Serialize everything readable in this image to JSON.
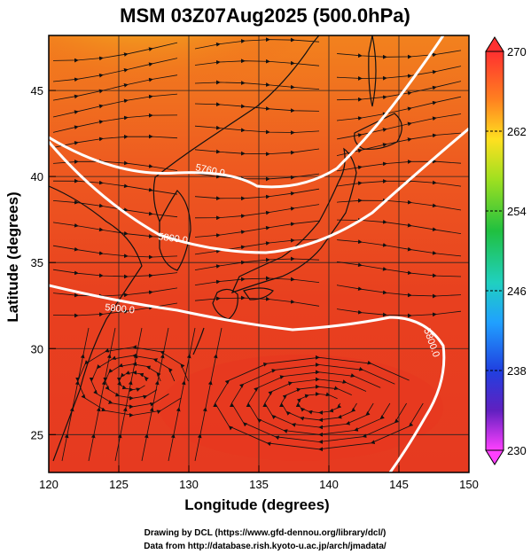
{
  "title": "MSM 03Z07Aug2025 (500.0hPa)",
  "x_label": "Longitude (degrees)",
  "y_label": "Latitude  (degrees)",
  "x_ticks": [
    "120",
    "125",
    "130",
    "135",
    "140",
    "145",
    "150"
  ],
  "y_ticks": [
    "25",
    "30",
    "35",
    "40",
    "45"
  ],
  "colorbar_ticks": [
    "270",
    "262",
    "254",
    "246",
    "238",
    "230"
  ],
  "contour_labels": [
    "5760.0",
    "5800.0",
    "5800.0",
    "5800.0"
  ],
  "credits": {
    "line1": "Drawing by DCL (https://www.gfd-dennou.org/library/dcl/)",
    "line2": "Data from http://database.rish.kyoto-u.ac.jp/arch/jmadata/"
  },
  "colors": {
    "warm": "#e8391f",
    "mid": "#f28c1e",
    "cool": "#c8e81e",
    "contour": "#ffffff",
    "colorbar_top": "#ff3030",
    "colorbar_bottom": "#ff40ff"
  }
}
